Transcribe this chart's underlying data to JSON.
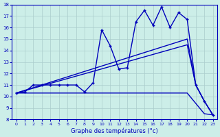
{
  "xlabel": "Graphe des températures (°c)",
  "background_color": "#cceee8",
  "line_color": "#0000bb",
  "xlim": [
    -0.5,
    23.5
  ],
  "ylim": [
    8,
    18
  ],
  "xticks": [
    0,
    1,
    2,
    3,
    4,
    5,
    6,
    7,
    8,
    9,
    10,
    11,
    12,
    13,
    14,
    15,
    16,
    17,
    18,
    19,
    20,
    21,
    22,
    23
  ],
  "yticks": [
    8,
    9,
    10,
    11,
    12,
    13,
    14,
    15,
    16,
    17,
    18
  ],
  "series": [
    {
      "x": [
        0,
        1,
        2,
        3,
        4,
        5,
        6,
        7,
        8,
        9,
        10,
        11,
        12,
        13,
        14,
        15,
        16,
        17,
        18,
        19,
        20,
        21,
        22,
        23
      ],
      "y": [
        10.3,
        10.4,
        11.0,
        11.0,
        11.0,
        11.0,
        11.0,
        11.0,
        10.4,
        11.2,
        15.8,
        14.4,
        12.4,
        12.5,
        16.5,
        17.5,
        16.2,
        17.8,
        16.0,
        17.3,
        16.7,
        11.0,
        9.6,
        8.4
      ],
      "marker": "+",
      "lw": 1.0
    },
    {
      "x": [
        0,
        20,
        21,
        22,
        23
      ],
      "y": [
        10.3,
        15.0,
        11.0,
        9.6,
        8.4
      ],
      "marker": null,
      "lw": 1.0
    },
    {
      "x": [
        0,
        20,
        21,
        22,
        23
      ],
      "y": [
        10.3,
        14.5,
        11.0,
        9.6,
        8.4
      ],
      "marker": null,
      "lw": 1.0
    },
    {
      "x": [
        0,
        20,
        22,
        23
      ],
      "y": [
        10.3,
        10.3,
        8.5,
        8.4
      ],
      "marker": null,
      "lw": 1.0
    }
  ]
}
